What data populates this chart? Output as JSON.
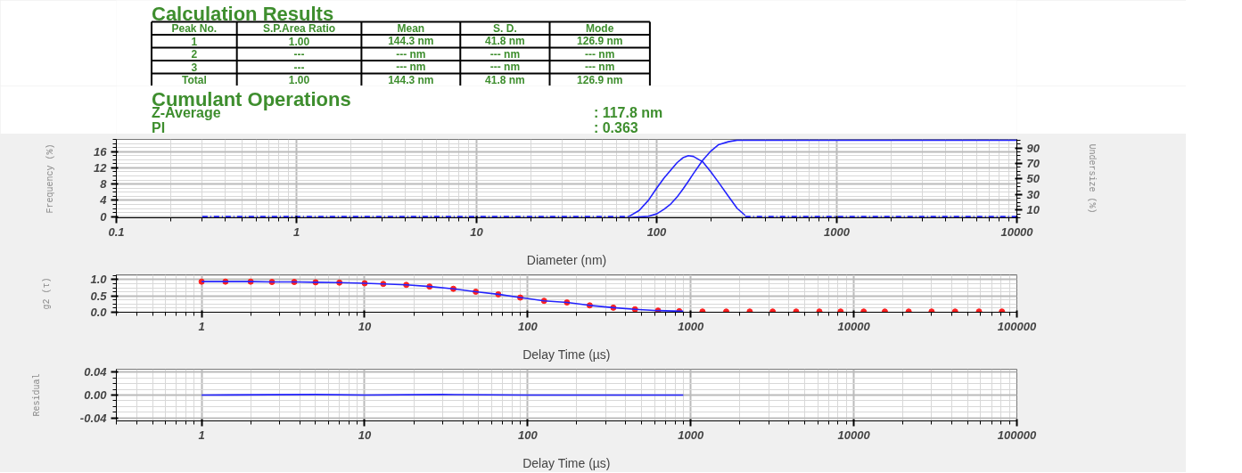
{
  "chart_data": [
    {
      "type": "other",
      "title": "Calculation Results",
      "annotations": [
        "Peak No.",
        "S.P.Area Ratio",
        "Mean",
        "S. D.",
        "Mode",
        "1",
        "1.00",
        "144.3 nm",
        "41.8 nm",
        "126.9 nm",
        "2",
        "---",
        "--- nm",
        "--- nm",
        "--- nm",
        "3",
        "---",
        "--- nm",
        "--- nm",
        "--- nm",
        "Total",
        "1.00",
        "144.3 nm",
        "41.8 nm",
        "126.9 nm"
      ]
    },
    {
      "type": "other",
      "title": "Cumulant Operations",
      "annotations": [
        "Z-Average",
        ":  117.8  nm",
        "PI",
        ":  0.363"
      ]
    },
    {
      "type": "line",
      "xlabel": "Diameter (nm)",
      "ylabel": "Frequency (%)",
      "y2label": "Undersize (%)",
      "log": "x",
      "grid": true,
      "xlim": [
        0.1,
        10000
      ],
      "xticks": [
        0.1,
        1,
        10,
        100,
        1000,
        10000
      ],
      "ylim": [
        -0.3,
        19
      ],
      "yticks": [
        0,
        4,
        8,
        12,
        16
      ],
      "y2lim": [
        0,
        101
      ],
      "y2ticks": [
        10,
        30,
        50,
        70,
        90
      ],
      "series": [
        {
          "color": "#2323ff",
          "x": [
            70,
            80,
            90,
            100,
            110,
            120,
            130,
            140,
            150,
            160,
            180,
            200,
            220,
            250,
            280,
            310
          ],
          "values": [
            0,
            1.5,
            4,
            7,
            9.5,
            11.5,
            13.3,
            14.5,
            15,
            14.8,
            13.5,
            11,
            8.5,
            5,
            2,
            0.3
          ]
        },
        {
          "color": "#2323ff",
          "line_style": "dashed",
          "x": [
            0.3,
            70,
            150,
            310,
            10000
          ],
          "values": [
            0,
            0,
            null,
            0,
            0
          ]
        },
        {
          "color": "#2323ff",
          "axis": "y2",
          "x": [
            70,
            80,
            90,
            100,
            110,
            120,
            130,
            140,
            150,
            160,
            180,
            200,
            220,
            250,
            280,
            310,
            10000
          ],
          "values": [
            0,
            1,
            2,
            5,
            11,
            18,
            27,
            37,
            47,
            57,
            74,
            86,
            94,
            98,
            100,
            100,
            100
          ]
        }
      ]
    },
    {
      "type": "scatter",
      "xlabel": "Delay Time (µs)",
      "ylabel": "g2 (τ)",
      "log": "x",
      "grid": true,
      "xlim": [
        0.3,
        100000
      ],
      "xticks": [
        1,
        10,
        100,
        1000,
        10000,
        100000
      ],
      "ylim": [
        0,
        1.15
      ],
      "yticks": [
        {
          "value": 0,
          "label": "0.0"
        },
        {
          "value": 0.5,
          "label": "0.5"
        },
        {
          "value": 1,
          "label": "1.0"
        }
      ],
      "series": [
        {
          "type": "scatter",
          "marker": "circle",
          "color": "#ff2020",
          "x": [
            1,
            1.4,
            2,
            2.7,
            3.7,
            5,
            7,
            10,
            13,
            18,
            25,
            35,
            48,
            66,
            90,
            126,
            174,
            240,
            335,
            455,
            630,
            850,
            1180,
            1650,
            2300,
            3180,
            4430,
            6150,
            8300,
            11500,
            15500,
            21700,
            30000,
            41800,
            58600,
            81000
          ],
          "values": [
            0.94,
            0.94,
            0.94,
            0.93,
            0.93,
            0.92,
            0.91,
            0.89,
            0.87,
            0.84,
            0.79,
            0.72,
            0.63,
            0.55,
            0.45,
            0.35,
            0.3,
            0.21,
            0.14,
            0.09,
            0.05,
            0.03,
            0.02,
            0.02,
            0.02,
            0.02,
            0.02,
            0.02,
            0.02,
            0.02,
            0.02,
            0.02,
            0.02,
            0.02,
            0.02,
            0.02
          ]
        },
        {
          "type": "line",
          "color": "#2323ff",
          "x": [
            1,
            1.4,
            2,
            2.7,
            3.7,
            5,
            7,
            10,
            13,
            18,
            25,
            35,
            48,
            66,
            90,
            126,
            174,
            240,
            335,
            455,
            630,
            900
          ],
          "values": [
            0.94,
            0.94,
            0.94,
            0.93,
            0.93,
            0.92,
            0.91,
            0.89,
            0.87,
            0.84,
            0.79,
            0.72,
            0.63,
            0.55,
            0.45,
            0.35,
            0.3,
            0.21,
            0.14,
            0.09,
            0.05,
            0.03
          ]
        }
      ]
    },
    {
      "type": "line",
      "xlabel": "Delay Time (µs)",
      "ylabel": "Residual",
      "log": "x",
      "grid": true,
      "xlim": [
        0.3,
        100000
      ],
      "xticks": [
        1,
        10,
        100,
        1000,
        10000,
        100000
      ],
      "ylim": [
        -0.045,
        0.045
      ],
      "yticks": [
        {
          "value": -0.04,
          "label": "-0.04"
        },
        {
          "value": 0,
          "label": "0.00"
        },
        {
          "value": 0.04,
          "label": "0.04"
        }
      ],
      "series": [
        {
          "color": "#2323ff",
          "x": [
            1,
            5,
            10,
            30,
            100,
            300,
            900
          ],
          "values": [
            0,
            0.001,
            0,
            0.001,
            0,
            0,
            0
          ]
        }
      ]
    }
  ]
}
